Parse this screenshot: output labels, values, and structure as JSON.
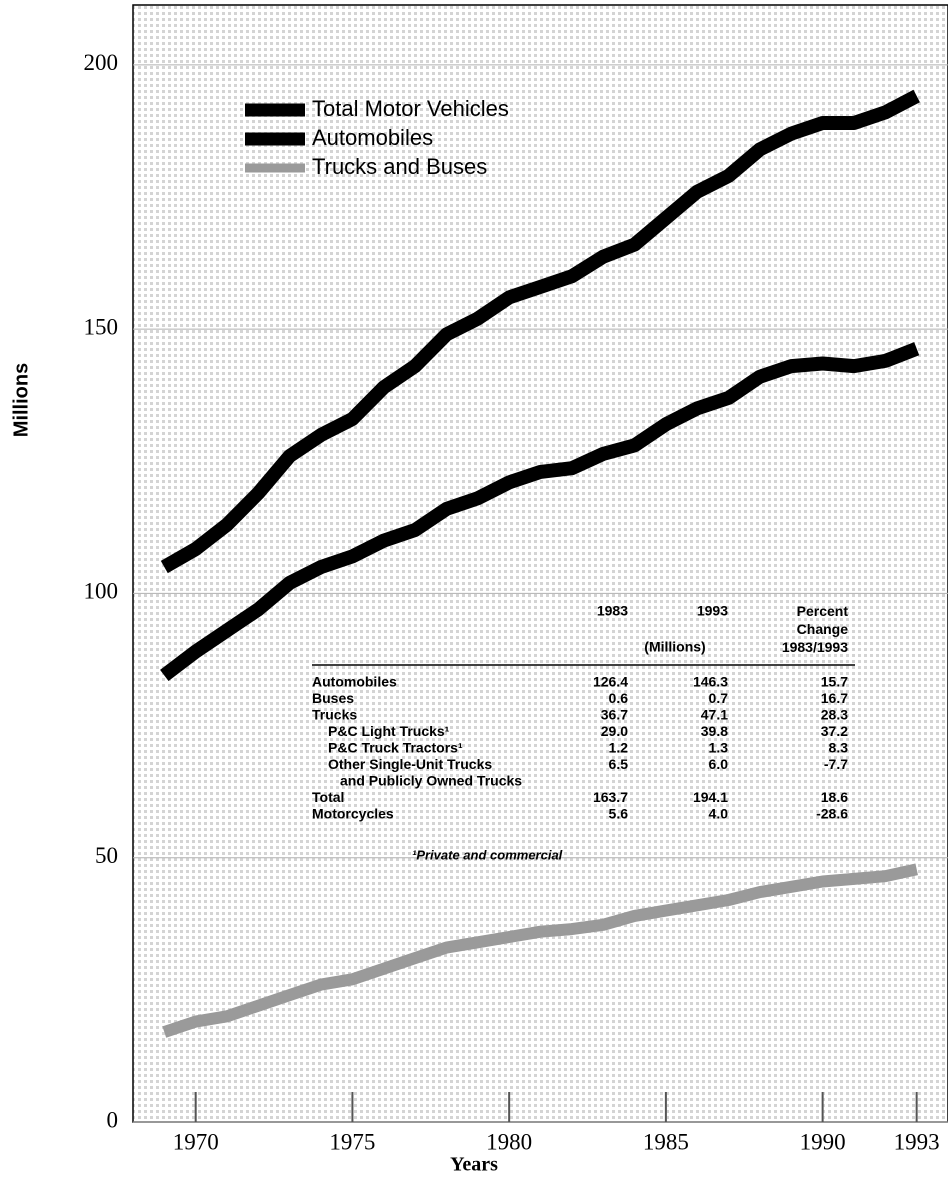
{
  "chart_data": {
    "type": "line",
    "x_label": "Years",
    "y_label": "Millions",
    "x": [
      1969,
      1970,
      1971,
      1972,
      1973,
      1974,
      1975,
      1976,
      1977,
      1978,
      1979,
      1980,
      1981,
      1982,
      1983,
      1984,
      1985,
      1986,
      1987,
      1988,
      1989,
      1990,
      1991,
      1992,
      1993
    ],
    "series": [
      {
        "name": "Total Motor Vehicles",
        "color": "#000000",
        "values": [
          105,
          108.4,
          113,
          119,
          126,
          130,
          133,
          139,
          143,
          149,
          152,
          156,
          158,
          160,
          163.7,
          166,
          171,
          176,
          179,
          184,
          187,
          189,
          189,
          191,
          194.1
        ]
      },
      {
        "name": "Automobiles",
        "color": "#000000",
        "values": [
          84.5,
          89,
          93,
          97,
          102,
          105,
          107,
          110,
          112,
          116,
          118,
          121,
          123,
          123.7,
          126.4,
          128,
          132,
          135,
          137,
          141,
          143,
          143.5,
          143,
          144,
          146.3
        ]
      },
      {
        "name": "Trucks and Buses",
        "color": "#9a9a9a",
        "values": [
          17,
          19,
          20,
          22,
          24,
          26,
          27,
          29,
          31,
          33,
          34,
          35,
          36,
          36.5,
          37.3,
          39,
          40,
          41,
          42,
          43.5,
          44.5,
          45.5,
          46,
          46.5,
          47.8
        ]
      }
    ],
    "xlim": [
      1968,
      1994
    ],
    "xticks": [
      1970,
      1975,
      1980,
      1985,
      1990,
      1993
    ],
    "ylim": [
      0,
      210
    ],
    "yticks": [
      0,
      50,
      100,
      150,
      200
    ],
    "legend": "upper left",
    "grid": true,
    "table": {
      "columns": [
        "1983",
        "1993",
        "Percent Change 1983/1993"
      ],
      "unit": "(Millions)",
      "rows": [
        {
          "label": "Automobiles",
          "cells": [
            "126.4",
            "146.3",
            "15.7"
          ]
        },
        {
          "label": "Buses",
          "cells": [
            "0.6",
            "0.7",
            "16.7"
          ]
        },
        {
          "label": "Trucks",
          "cells": [
            "36.7",
            "47.1",
            "28.3"
          ]
        },
        {
          "label": "P&C Light Trucks¹",
          "cells": [
            "29.0",
            "39.8",
            "37.2"
          ],
          "indent": true
        },
        {
          "label": "P&C Truck Tractors¹",
          "cells": [
            "1.2",
            "1.3",
            "8.3"
          ],
          "indent": true
        },
        {
          "label": "Other Single-Unit Trucks",
          "cells": [
            "6.5",
            "6.0",
            "-7.7"
          ],
          "indent": true
        },
        {
          "label": "and Publicly Owned Trucks",
          "cells": [],
          "indent": true,
          "continued": true
        },
        {
          "label": "Total",
          "cells": [
            "163.7",
            "194.1",
            "18.6"
          ]
        },
        {
          "label": "Motorcycles",
          "cells": [
            "5.6",
            "4.0",
            "-28.6"
          ]
        }
      ],
      "footnote": "¹Private and commercial"
    }
  }
}
